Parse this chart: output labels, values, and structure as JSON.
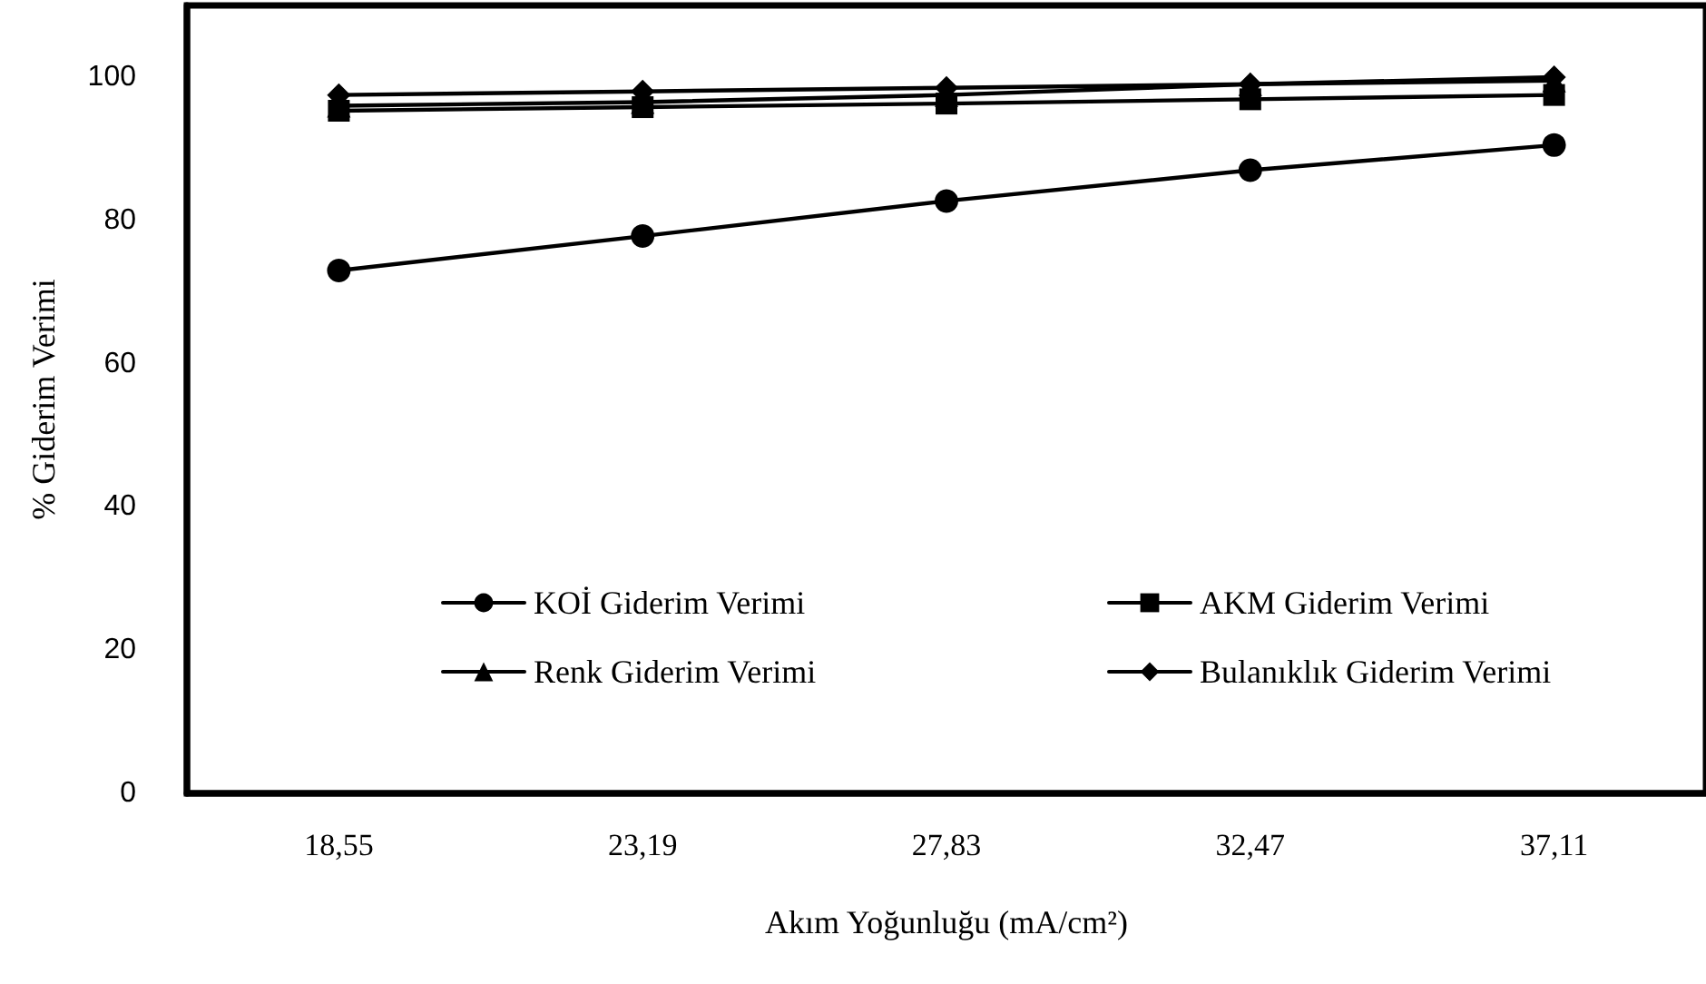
{
  "chart_data": {
    "type": "line",
    "xlabel": "Akım Yoğunluğu (mA/cm²)",
    "ylabel": "% Giderim Verimi",
    "categories": [
      "18,55",
      "23,19",
      "27,83",
      "32,47",
      "37,11"
    ],
    "ylim": [
      0,
      110
    ],
    "yticks": [
      0,
      20,
      40,
      60,
      80,
      100
    ],
    "grid": false,
    "legend": "bottom",
    "line_style": "solid",
    "series": [
      {
        "name": "KOİ Giderim Verimi",
        "color": "#000000",
        "marker": "circle",
        "values": [
          73,
          77.8,
          82.7,
          87,
          90.5
        ]
      },
      {
        "name": "AKM Giderim Verimi",
        "color": "#000000",
        "marker": "square",
        "values": [
          95.3,
          95.8,
          96.3,
          96.9,
          97.5
        ]
      },
      {
        "name": "Renk Giderim Verimi",
        "color": "#000000",
        "marker": "triangle",
        "values": [
          96,
          96.5,
          97.5,
          99,
          99.5
        ]
      },
      {
        "name": "Bulanıklık Giderim Verimi",
        "color": "#000000",
        "marker": "diamond",
        "values": [
          97.5,
          98,
          98.5,
          99,
          100
        ]
      }
    ]
  }
}
